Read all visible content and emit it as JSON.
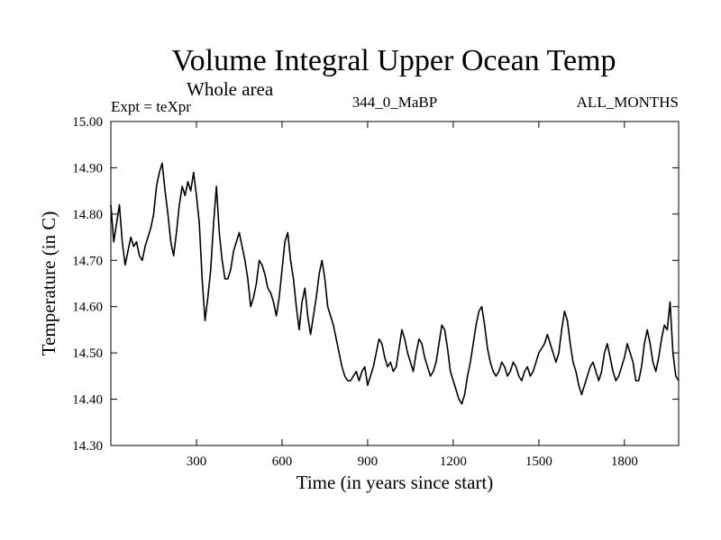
{
  "chart_data": {
    "type": "line",
    "title": "Volume Integral Upper Ocean Temp",
    "subtitle": "Whole area",
    "annotations": {
      "left": "Expt = teXpr",
      "center": "344_0_MaBP",
      "right": "ALL_MONTHS"
    },
    "xlabel": "Time (in years since start)",
    "ylabel": "Temperature (in C)",
    "xlim": [
      0,
      1990
    ],
    "ylim": [
      14.3,
      15.0
    ],
    "xticks": [
      300,
      600,
      900,
      1200,
      1500,
      1800
    ],
    "xtick_labels": [
      "300",
      "600",
      "900",
      "1200",
      "1500",
      "1800"
    ],
    "yticks": [
      14.3,
      14.4,
      14.5,
      14.6,
      14.7,
      14.8,
      14.9,
      15.0
    ],
    "ytick_labels": [
      "14.30",
      "14.40",
      "14.50",
      "14.60",
      "14.70",
      "14.80",
      "14.90",
      "15.00"
    ],
    "grid": false,
    "series": [
      {
        "color": "#000000",
        "x": [
          0,
          10,
          20,
          30,
          40,
          50,
          60,
          70,
          80,
          90,
          100,
          110,
          120,
          130,
          140,
          150,
          160,
          170,
          180,
          190,
          200,
          210,
          220,
          230,
          240,
          250,
          260,
          270,
          280,
          290,
          300,
          310,
          320,
          330,
          340,
          350,
          360,
          370,
          380,
          390,
          400,
          410,
          420,
          430,
          440,
          450,
          460,
          470,
          480,
          490,
          500,
          510,
          520,
          530,
          540,
          550,
          560,
          570,
          580,
          590,
          600,
          610,
          620,
          630,
          640,
          650,
          660,
          670,
          680,
          690,
          700,
          710,
          720,
          730,
          740,
          750,
          760,
          770,
          780,
          790,
          800,
          810,
          820,
          830,
          840,
          850,
          860,
          870,
          880,
          890,
          900,
          910,
          920,
          930,
          940,
          950,
          960,
          970,
          980,
          990,
          1000,
          1010,
          1020,
          1030,
          1040,
          1050,
          1060,
          1070,
          1080,
          1090,
          1100,
          1110,
          1120,
          1130,
          1140,
          1150,
          1160,
          1170,
          1180,
          1190,
          1200,
          1210,
          1220,
          1230,
          1240,
          1250,
          1260,
          1270,
          1280,
          1290,
          1300,
          1310,
          1320,
          1330,
          1340,
          1350,
          1360,
          1370,
          1380,
          1390,
          1400,
          1410,
          1420,
          1430,
          1440,
          1450,
          1460,
          1470,
          1480,
          1490,
          1500,
          1510,
          1520,
          1530,
          1540,
          1550,
          1560,
          1570,
          1580,
          1590,
          1600,
          1610,
          1620,
          1630,
          1640,
          1650,
          1660,
          1670,
          1680,
          1690,
          1700,
          1710,
          1720,
          1730,
          1740,
          1750,
          1760,
          1770,
          1780,
          1790,
          1800,
          1810,
          1820,
          1830,
          1840,
          1850,
          1860,
          1870,
          1880,
          1890,
          1900,
          1910,
          1920,
          1930,
          1940,
          1950,
          1960,
          1970,
          1980,
          1990
        ],
        "y": [
          14.82,
          14.74,
          14.78,
          14.82,
          14.74,
          14.69,
          14.72,
          14.75,
          14.73,
          14.74,
          14.71,
          14.7,
          14.73,
          14.75,
          14.77,
          14.8,
          14.86,
          14.89,
          14.91,
          14.85,
          14.8,
          14.74,
          14.71,
          14.76,
          14.82,
          14.86,
          14.84,
          14.87,
          14.85,
          14.89,
          14.84,
          14.78,
          14.66,
          14.57,
          14.62,
          14.68,
          14.78,
          14.86,
          14.76,
          14.7,
          14.66,
          14.66,
          14.68,
          14.72,
          14.74,
          14.76,
          14.73,
          14.7,
          14.66,
          14.6,
          14.62,
          14.65,
          14.7,
          14.69,
          14.67,
          14.64,
          14.63,
          14.61,
          14.58,
          14.62,
          14.68,
          14.74,
          14.76,
          14.7,
          14.66,
          14.6,
          14.55,
          14.61,
          14.64,
          14.58,
          14.54,
          14.58,
          14.62,
          14.67,
          14.7,
          14.66,
          14.6,
          14.58,
          14.56,
          14.53,
          14.5,
          14.47,
          14.45,
          14.44,
          14.44,
          14.45,
          14.46,
          14.44,
          14.46,
          14.47,
          14.43,
          14.45,
          14.47,
          14.5,
          14.53,
          14.52,
          14.49,
          14.47,
          14.48,
          14.46,
          14.47,
          14.51,
          14.55,
          14.53,
          14.5,
          14.48,
          14.46,
          14.5,
          14.53,
          14.52,
          14.49,
          14.47,
          14.45,
          14.46,
          14.48,
          14.52,
          14.56,
          14.55,
          14.51,
          14.46,
          14.44,
          14.42,
          14.4,
          14.39,
          14.41,
          14.45,
          14.48,
          14.52,
          14.56,
          14.59,
          14.6,
          14.56,
          14.51,
          14.48,
          14.46,
          14.45,
          14.46,
          14.48,
          14.47,
          14.45,
          14.46,
          14.48,
          14.47,
          14.45,
          14.44,
          14.46,
          14.47,
          14.45,
          14.46,
          14.48,
          14.5,
          14.51,
          14.52,
          14.54,
          14.52,
          14.5,
          14.48,
          14.5,
          14.55,
          14.59,
          14.57,
          14.52,
          14.48,
          14.46,
          14.43,
          14.41,
          14.43,
          14.45,
          14.47,
          14.48,
          14.46,
          14.44,
          14.46,
          14.5,
          14.52,
          14.49,
          14.46,
          14.44,
          14.45,
          14.47,
          14.49,
          14.52,
          14.5,
          14.48,
          14.44,
          14.44,
          14.47,
          14.52,
          14.55,
          14.52,
          14.48,
          14.46,
          14.49,
          14.53,
          14.56,
          14.55,
          14.61,
          14.5,
          14.45,
          14.44
        ]
      }
    ]
  }
}
